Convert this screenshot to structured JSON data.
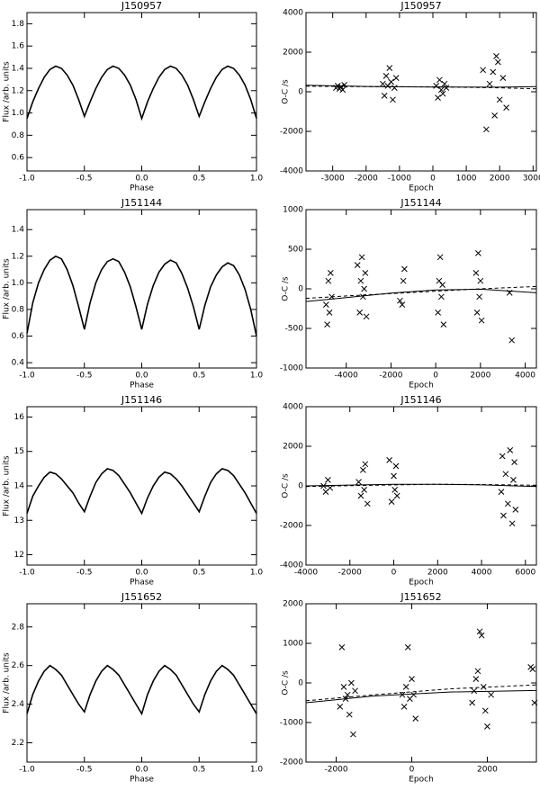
{
  "chart_data": [
    {
      "type": "line",
      "title": "J150957",
      "xlabel": "Phase",
      "ylabel": "Flux /arb. units",
      "color": "#000000",
      "xlim": [
        -1.0,
        1.0
      ],
      "ylim": [
        0.48,
        1.9
      ],
      "xticks": [
        {
          "value": -1.0,
          "label": "-1.0"
        },
        {
          "value": -0.5,
          "label": "-0.5"
        },
        {
          "value": 0.0,
          "label": "0.0"
        },
        {
          "value": 0.5,
          "label": "0.5"
        },
        {
          "value": 1.0,
          "label": "1.0"
        }
      ],
      "yticks": [
        0.6,
        0.8,
        {
          "value": 1.0,
          "label": "1.0"
        },
        1.2,
        1.4,
        1.6,
        1.8
      ],
      "x": [
        -1.0,
        -0.95,
        -0.9,
        -0.85,
        -0.8,
        -0.75,
        -0.7,
        -0.65,
        -0.6,
        -0.55,
        -0.5,
        -0.45,
        -0.4,
        -0.35,
        -0.3,
        -0.25,
        -0.2,
        -0.15,
        -0.1,
        -0.05,
        0.0,
        0.05,
        0.1,
        0.15,
        0.2,
        0.25,
        0.3,
        0.35,
        0.4,
        0.45,
        0.5,
        0.55,
        0.6,
        0.65,
        0.7,
        0.75,
        0.8,
        0.85,
        0.9,
        0.95,
        1.0
      ],
      "values": [
        0.95,
        1.1,
        1.22,
        1.32,
        1.39,
        1.42,
        1.4,
        1.34,
        1.25,
        1.12,
        0.97,
        1.1,
        1.22,
        1.32,
        1.39,
        1.42,
        1.4,
        1.34,
        1.25,
        1.12,
        0.95,
        1.1,
        1.22,
        1.32,
        1.39,
        1.42,
        1.4,
        1.34,
        1.25,
        1.12,
        0.97,
        1.1,
        1.22,
        1.32,
        1.39,
        1.42,
        1.4,
        1.34,
        1.25,
        1.12,
        0.95
      ]
    },
    {
      "type": "scatter",
      "title": "J150957",
      "xlabel": "Epoch",
      "ylabel": "O-C /s",
      "color": "#000000",
      "xlim": [
        -3800,
        3100
      ],
      "ylim": [
        -4000,
        4000
      ],
      "xticks": [
        -3000,
        -2000,
        -1000,
        0,
        1000,
        2000,
        3000
      ],
      "yticks": [
        -4000,
        -2000,
        0,
        2000,
        4000
      ],
      "x": [
        -2900,
        -2850,
        -2800,
        -2750,
        -2700,
        -2650,
        -1500,
        -1450,
        -1400,
        -1350,
        -1300,
        -1250,
        -1200,
        -1150,
        -1100,
        100,
        150,
        200,
        250,
        300,
        350,
        400,
        1600,
        1700,
        1800,
        1850,
        1900,
        1950,
        2000,
        2100,
        1500,
        2200
      ],
      "values": [
        200,
        300,
        150,
        250,
        100,
        350,
        400,
        -200,
        800,
        300,
        1200,
        500,
        -400,
        200,
        700,
        300,
        -300,
        600,
        100,
        -100,
        400,
        200,
        -1900,
        400,
        1000,
        -1200,
        1800,
        1500,
        -400,
        700,
        1100,
        -800
      ],
      "fits": [
        {
          "style": "solid",
          "x": [
            -3800,
            -2000,
            0,
            2000,
            3100
          ],
          "values": [
            330,
            270,
            240,
            230,
            260
          ]
        },
        {
          "style": "dashed",
          "x": [
            -3800,
            -2000,
            0,
            2000,
            3100
          ],
          "values": [
            280,
            260,
            250,
            200,
            150
          ]
        }
      ]
    },
    {
      "type": "line",
      "title": "J151144",
      "xlabel": "Phase",
      "ylabel": "Flux /arb. units",
      "color": "#000000",
      "xlim": [
        -1.0,
        1.0
      ],
      "ylim": [
        0.36,
        1.55
      ],
      "xticks": [
        {
          "value": -1.0,
          "label": "-1.0"
        },
        {
          "value": -0.5,
          "label": "-0.5"
        },
        {
          "value": 0.0,
          "label": "0.0"
        },
        {
          "value": 0.5,
          "label": "0.5"
        },
        {
          "value": 1.0,
          "label": "1.0"
        }
      ],
      "yticks": [
        0.4,
        0.6,
        0.8,
        {
          "value": 1.0,
          "label": "1.0"
        },
        1.2,
        1.4
      ],
      "x": [
        -1.0,
        -0.95,
        -0.9,
        -0.85,
        -0.8,
        -0.75,
        -0.7,
        -0.65,
        -0.6,
        -0.55,
        -0.5,
        -0.45,
        -0.4,
        -0.35,
        -0.3,
        -0.25,
        -0.2,
        -0.15,
        -0.1,
        -0.05,
        0.0,
        0.05,
        0.1,
        0.15,
        0.2,
        0.25,
        0.3,
        0.35,
        0.4,
        0.45,
        0.5,
        0.55,
        0.6,
        0.65,
        0.7,
        0.75,
        0.8,
        0.85,
        0.9,
        0.95,
        1.0
      ],
      "values": [
        0.62,
        0.85,
        1.0,
        1.1,
        1.17,
        1.2,
        1.18,
        1.1,
        0.98,
        0.82,
        0.65,
        0.85,
        1.0,
        1.1,
        1.16,
        1.18,
        1.16,
        1.08,
        0.97,
        0.82,
        0.65,
        0.84,
        0.98,
        1.08,
        1.14,
        1.17,
        1.15,
        1.07,
        0.96,
        0.82,
        0.65,
        0.83,
        0.97,
        1.06,
        1.12,
        1.15,
        1.13,
        1.06,
        0.95,
        0.8,
        0.6
      ]
    },
    {
      "type": "scatter",
      "title": "J151144",
      "xlabel": "Epoch",
      "ylabel": "O-C /s",
      "color": "#000000",
      "xlim": [
        -5800,
        4500
      ],
      "ylim": [
        -1000,
        1000
      ],
      "xticks": [
        -4000,
        -2000,
        0,
        2000,
        4000
      ],
      "yticks": [
        -1000,
        -500,
        0,
        500,
        1000
      ],
      "x": [
        -4900,
        -4850,
        -4800,
        -4750,
        -4700,
        -4650,
        -3500,
        -3400,
        -3350,
        -3300,
        -3250,
        -3200,
        -3150,
        -3100,
        -1600,
        -1500,
        -1450,
        -1400,
        100,
        150,
        200,
        250,
        300,
        350,
        1800,
        1850,
        1900,
        1950,
        2000,
        2050,
        3300,
        3400
      ],
      "values": [
        -200,
        -450,
        100,
        -300,
        200,
        -100,
        300,
        -300,
        100,
        400,
        -100,
        0,
        200,
        -350,
        -150,
        -200,
        100,
        250,
        -300,
        100,
        400,
        -100,
        50,
        -450,
        200,
        -300,
        450,
        -100,
        100,
        -400,
        -50,
        -650
      ],
      "fits": [
        {
          "style": "solid",
          "x": [
            -5800,
            -4000,
            -2000,
            0,
            2000,
            4500
          ],
          "values": [
            -160,
            -110,
            -55,
            -15,
            -5,
            -50
          ]
        },
        {
          "style": "dashed",
          "x": [
            -5800,
            -4000,
            -2000,
            0,
            2000,
            4500
          ],
          "values": [
            -120,
            -90,
            -60,
            -30,
            0,
            30
          ]
        }
      ]
    },
    {
      "type": "line",
      "title": "J151146",
      "xlabel": "Phase",
      "ylabel": "Flux /arb. units",
      "color": "#000000",
      "xlim": [
        -1.0,
        1.0
      ],
      "ylim": [
        11.7,
        16.3
      ],
      "xticks": [
        {
          "value": -1.0,
          "label": "-1.0"
        },
        {
          "value": -0.5,
          "label": "-0.5"
        },
        {
          "value": 0.0,
          "label": "0.0"
        },
        {
          "value": 0.5,
          "label": "0.5"
        },
        {
          "value": 1.0,
          "label": "1.0"
        }
      ],
      "yticks": [
        12,
        13,
        14,
        15,
        16
      ],
      "x": [
        -1.0,
        -0.95,
        -0.9,
        -0.85,
        -0.8,
        -0.75,
        -0.7,
        -0.65,
        -0.6,
        -0.55,
        -0.5,
        -0.45,
        -0.4,
        -0.35,
        -0.3,
        -0.25,
        -0.2,
        -0.15,
        -0.1,
        -0.05,
        0.0,
        0.05,
        0.1,
        0.15,
        0.2,
        0.25,
        0.3,
        0.35,
        0.4,
        0.45,
        0.5,
        0.55,
        0.6,
        0.65,
        0.7,
        0.75,
        0.8,
        0.85,
        0.9,
        0.95,
        1.0
      ],
      "values": [
        13.2,
        13.7,
        14.0,
        14.25,
        14.4,
        14.35,
        14.2,
        14.0,
        13.8,
        13.5,
        13.25,
        13.7,
        14.1,
        14.35,
        14.5,
        14.45,
        14.3,
        14.05,
        13.8,
        13.5,
        13.2,
        13.65,
        14.0,
        14.25,
        14.4,
        14.35,
        14.2,
        14.0,
        13.75,
        13.5,
        13.25,
        13.7,
        14.1,
        14.35,
        14.5,
        14.45,
        14.3,
        14.05,
        13.8,
        13.5,
        13.2
      ]
    },
    {
      "type": "scatter",
      "title": "J151146",
      "xlabel": "Epoch",
      "ylabel": "O-C /s",
      "color": "#000000",
      "xlim": [
        -4000,
        6500
      ],
      "ylim": [
        -4000,
        4000
      ],
      "xticks": [
        -4000,
        -2000,
        0,
        2000,
        4000,
        6000
      ],
      "yticks": [
        -4000,
        -2000,
        0,
        2000,
        4000
      ],
      "x": [
        -3200,
        -3100,
        -3000,
        -2900,
        -1600,
        -1500,
        -1400,
        -1350,
        -1300,
        -1200,
        -200,
        -100,
        0,
        50,
        100,
        150,
        4900,
        4950,
        5000,
        5100,
        5200,
        5300,
        5400,
        5450,
        5500,
        5550
      ],
      "values": [
        0,
        -300,
        300,
        -100,
        200,
        -500,
        800,
        -200,
        1100,
        -900,
        1300,
        -800,
        500,
        -200,
        1000,
        -500,
        -300,
        1500,
        -1500,
        600,
        -900,
        1800,
        -1900,
        300,
        1200,
        -1200
      ],
      "fits": [
        {
          "style": "solid",
          "x": [
            -4000,
            0,
            2000,
            4000,
            6500
          ],
          "values": [
            0,
            80,
            80,
            50,
            -30
          ]
        },
        {
          "style": "dashed",
          "x": [
            -4000,
            0,
            2000,
            4000,
            6500
          ],
          "values": [
            -30,
            50,
            80,
            70,
            30
          ]
        }
      ]
    },
    {
      "type": "line",
      "title": "J151652",
      "xlabel": "Phase",
      "ylabel": "Flux /arb. units",
      "color": "#000000",
      "xlim": [
        -1.0,
        1.0
      ],
      "ylim": [
        2.1,
        2.92
      ],
      "xticks": [
        {
          "value": -1.0,
          "label": "-1.0"
        },
        {
          "value": -0.5,
          "label": "-0.5"
        },
        {
          "value": 0.0,
          "label": "0.0"
        },
        {
          "value": 0.5,
          "label": "0.5"
        },
        {
          "value": 1.0,
          "label": "1.0"
        }
      ],
      "yticks": [
        2.2,
        2.4,
        2.6,
        2.8
      ],
      "x": [
        -1.0,
        -0.95,
        -0.9,
        -0.85,
        -0.8,
        -0.75,
        -0.7,
        -0.65,
        -0.6,
        -0.55,
        -0.5,
        -0.45,
        -0.4,
        -0.35,
        -0.3,
        -0.25,
        -0.2,
        -0.15,
        -0.1,
        -0.05,
        0.0,
        0.05,
        0.1,
        0.15,
        0.2,
        0.25,
        0.3,
        0.35,
        0.4,
        0.45,
        0.5,
        0.55,
        0.6,
        0.65,
        0.7,
        0.75,
        0.8,
        0.85,
        0.9,
        0.95,
        1.0
      ],
      "values": [
        2.35,
        2.45,
        2.52,
        2.57,
        2.6,
        2.58,
        2.55,
        2.5,
        2.45,
        2.4,
        2.36,
        2.45,
        2.52,
        2.57,
        2.6,
        2.58,
        2.55,
        2.5,
        2.45,
        2.4,
        2.35,
        2.45,
        2.52,
        2.57,
        2.6,
        2.58,
        2.55,
        2.5,
        2.45,
        2.4,
        2.36,
        2.45,
        2.52,
        2.57,
        2.6,
        2.58,
        2.55,
        2.5,
        2.45,
        2.4,
        2.35
      ]
    },
    {
      "type": "scatter",
      "title": "J151652",
      "xlabel": "Epoch",
      "ylabel": "O-C /s",
      "color": "#000000",
      "xlim": [
        -2800,
        3300
      ],
      "ylim": [
        -2000,
        2000
      ],
      "xticks": [
        -2000,
        0,
        2000
      ],
      "yticks": [
        -2000,
        -1000,
        0,
        1000,
        2000
      ],
      "x": [
        -1900,
        -1850,
        -1800,
        -1750,
        -1700,
        -1650,
        -1600,
        -1550,
        -1500,
        -250,
        -200,
        -150,
        -100,
        -50,
        0,
        50,
        100,
        1600,
        1650,
        1700,
        1750,
        1800,
        1850,
        1900,
        1950,
        2000,
        2100,
        3150,
        3200,
        3250
      ],
      "values": [
        -600,
        900,
        -100,
        -400,
        -300,
        -800,
        0,
        -1300,
        -200,
        -300,
        -600,
        -100,
        900,
        -400,
        100,
        -300,
        -900,
        -500,
        -200,
        100,
        300,
        1300,
        1200,
        -100,
        -700,
        -1100,
        -300,
        400,
        350,
        -500
      ],
      "fits": [
        {
          "style": "solid",
          "x": [
            -2800,
            -1000,
            1000,
            3300
          ],
          "values": [
            -500,
            -330,
            -230,
            -190
          ]
        },
        {
          "style": "dashed",
          "x": [
            -2800,
            -1000,
            1000,
            3300
          ],
          "values": [
            -450,
            -300,
            -150,
            -50
          ]
        }
      ]
    }
  ]
}
